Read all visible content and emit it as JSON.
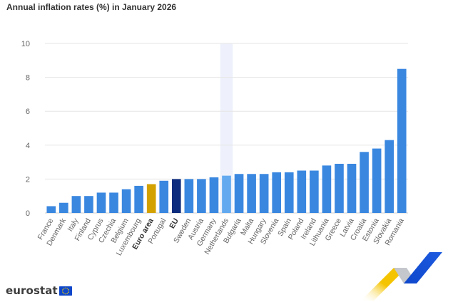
{
  "title": "Annual inflation rates (%) in January 2026",
  "logo": {
    "text": "eurostat",
    "flag_icon": "eu-flag-icon"
  },
  "colors": {
    "bar": "#3a87e0",
    "euro_area": "#d4a200",
    "eu": "#0e2c7e",
    "highlight": "#62a9f0",
    "highlight_band": "#eef1fb",
    "grid": "#e6e6e6",
    "axis_text": "#666666",
    "deco_yellow": "#f5c400",
    "deco_blue": "#0e47cb",
    "deco_grey": "#9aa0a6"
  },
  "chart_data": {
    "type": "bar",
    "categories": [
      "France",
      "Denmark",
      "Italy",
      "Finland",
      "Cyprus",
      "Czechia",
      "Belgium",
      "Luxembourg",
      "Euro area",
      "Portugal",
      "EU",
      "Sweden",
      "Austria",
      "Germany",
      "Netherlands",
      "Bulgaria",
      "Malta",
      "Hungary",
      "Slovenia",
      "Spain",
      "Poland",
      "Ireland",
      "Lithuania",
      "Greece",
      "Latvia",
      "Croatia",
      "Estonia",
      "Slovakia",
      "Romania"
    ],
    "values": [
      0.4,
      0.6,
      1.0,
      1.0,
      1.2,
      1.2,
      1.4,
      1.6,
      1.7,
      1.9,
      2.0,
      2.0,
      2.0,
      2.1,
      2.2,
      2.3,
      2.3,
      2.3,
      2.4,
      2.4,
      2.5,
      2.5,
      2.8,
      2.9,
      2.9,
      3.6,
      3.8,
      4.3,
      8.5
    ],
    "bold_categories": [
      "Euro area",
      "EU"
    ],
    "highlighted_category": "Netherlands",
    "ylim": [
      0,
      10
    ],
    "yticks": [
      0,
      2,
      4,
      6,
      8,
      10
    ],
    "title": "Annual inflation rates (%) in January 2026",
    "xlabel": "",
    "ylabel": "",
    "grid": true,
    "legend": "none"
  }
}
